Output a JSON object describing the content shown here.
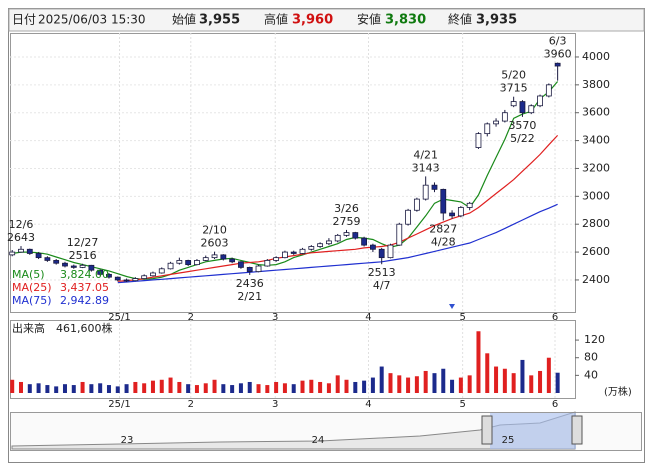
{
  "header": {
    "date_label": "日付",
    "date": "2025/06/03 15:30",
    "open_label": "始値",
    "open": "3,955",
    "high_label": "高値",
    "high": "3,960",
    "low_label": "安値",
    "low": "3,830",
    "close_label": "終値",
    "close": "3,935"
  },
  "chart_data": {
    "type": "candlestick",
    "up_color": "#ffffff",
    "down_color": "#1c2a8c",
    "edge_color": "#1a1a40",
    "ylim": [
      2170,
      4172
    ],
    "yticks": [
      2400,
      2600,
      2800,
      3000,
      3200,
      3400,
      3600,
      3800,
      4000
    ],
    "xlim": [
      -0.25,
      62.95
    ],
    "xticks": [
      {
        "value": 12.2,
        "label": "25/1"
      },
      {
        "value": 20.3,
        "label": "2"
      },
      {
        "value": 29.9,
        "label": "3"
      },
      {
        "value": 40.5,
        "label": "4"
      },
      {
        "value": 51.2,
        "label": "5"
      },
      {
        "value": 61.7,
        "label": "6"
      }
    ],
    "grid": true,
    "candles": [
      [
        2580,
        2615,
        2570,
        2600
      ],
      [
        2600,
        2643,
        2595,
        2620
      ],
      [
        2620,
        2625,
        2580,
        2590
      ],
      [
        2590,
        2600,
        2550,
        2560
      ],
      [
        2560,
        2570,
        2530,
        2540
      ],
      [
        2540,
        2550,
        2510,
        2520
      ],
      [
        2520,
        2530,
        2490,
        2500
      ],
      [
        2500,
        2510,
        2480,
        2490
      ],
      [
        2490,
        2516,
        2485,
        2505
      ],
      [
        2505,
        2508,
        2460,
        2470
      ],
      [
        2470,
        2475,
        2430,
        2440
      ],
      [
        2440,
        2450,
        2410,
        2420
      ],
      [
        2420,
        2425,
        2390,
        2400
      ],
      [
        2400,
        2410,
        2385,
        2395
      ],
      [
        2395,
        2420,
        2390,
        2410
      ],
      [
        2410,
        2440,
        2405,
        2430
      ],
      [
        2430,
        2460,
        2425,
        2450
      ],
      [
        2450,
        2490,
        2445,
        2480
      ],
      [
        2480,
        2530,
        2475,
        2520
      ],
      [
        2520,
        2560,
        2510,
        2540
      ],
      [
        2540,
        2545,
        2500,
        2510
      ],
      [
        2510,
        2550,
        2505,
        2540
      ],
      [
        2540,
        2575,
        2535,
        2560
      ],
      [
        2560,
        2603,
        2550,
        2580
      ],
      [
        2580,
        2585,
        2540,
        2550
      ],
      [
        2550,
        2560,
        2520,
        2530
      ],
      [
        2530,
        2535,
        2480,
        2490
      ],
      [
        2490,
        2495,
        2436,
        2460
      ],
      [
        2460,
        2510,
        2455,
        2500
      ],
      [
        2500,
        2550,
        2495,
        2540
      ],
      [
        2540,
        2570,
        2530,
        2560
      ],
      [
        2560,
        2610,
        2555,
        2600
      ],
      [
        2600,
        2610,
        2580,
        2590
      ],
      [
        2590,
        2630,
        2585,
        2620
      ],
      [
        2620,
        2650,
        2610,
        2640
      ],
      [
        2640,
        2670,
        2630,
        2660
      ],
      [
        2660,
        2700,
        2650,
        2680
      ],
      [
        2680,
        2730,
        2670,
        2720
      ],
      [
        2720,
        2759,
        2710,
        2740
      ],
      [
        2740,
        2745,
        2690,
        2700
      ],
      [
        2700,
        2710,
        2640,
        2650
      ],
      [
        2650,
        2660,
        2600,
        2620
      ],
      [
        2620,
        2630,
        2513,
        2560
      ],
      [
        2560,
        2660,
        2555,
        2650
      ],
      [
        2650,
        2810,
        2645,
        2800
      ],
      [
        2800,
        2910,
        2790,
        2900
      ],
      [
        2900,
        2990,
        2890,
        2980
      ],
      [
        2980,
        3143,
        2970,
        3080
      ],
      [
        3080,
        3100,
        3030,
        3050
      ],
      [
        3050,
        3055,
        2827,
        2880
      ],
      [
        2880,
        2900,
        2840,
        2860
      ],
      [
        2860,
        2930,
        2850,
        2920
      ],
      [
        2920,
        2960,
        2900,
        2950
      ],
      [
        3350,
        3460,
        3340,
        3450
      ],
      [
        3450,
        3530,
        3430,
        3520
      ],
      [
        3520,
        3560,
        3500,
        3540
      ],
      [
        3540,
        3620,
        3530,
        3600
      ],
      [
        3650,
        3715,
        3640,
        3680
      ],
      [
        3680,
        3690,
        3570,
        3600
      ],
      [
        3600,
        3660,
        3590,
        3650
      ],
      [
        3650,
        3730,
        3640,
        3720
      ],
      [
        3720,
        3810,
        3710,
        3800
      ],
      [
        3955,
        3960,
        3830,
        3935
      ]
    ],
    "series": [
      {
        "name": "MA(5)",
        "color": "#1a8a1a",
        "last_label": "3,824.00",
        "values": [
          2590,
          2600,
          2600,
          2595,
          2585,
          2565,
          2545,
          2525,
          2510,
          2495,
          2480,
          2465,
          2445,
          2425,
          2410,
          2405,
          2410,
          2420,
          2440,
          2470,
          2490,
          2510,
          2530,
          2540,
          2550,
          2555,
          2540,
          2525,
          2510,
          2505,
          2510,
          2530,
          2560,
          2580,
          2600,
          2620,
          2640,
          2660,
          2690,
          2705,
          2700,
          2690,
          2660,
          2635,
          2650,
          2700,
          2780,
          2860,
          2950,
          2980,
          2970,
          2960,
          2920,
          3010,
          3150,
          3280,
          3410,
          3560,
          3590,
          3610,
          3700,
          3750,
          3824.0
        ]
      },
      {
        "name": "MA(25)",
        "color": "#e02020",
        "last_label": "3,437.05",
        "values": [
          null,
          null,
          null,
          null,
          null,
          null,
          null,
          null,
          null,
          null,
          null,
          null,
          2390,
          2395,
          2400,
          2410,
          2420,
          2430,
          2440,
          2450,
          2460,
          2470,
          2480,
          2490,
          2500,
          2510,
          2520,
          2525,
          2530,
          2540,
          2555,
          2565,
          2575,
          2585,
          2595,
          2600,
          2605,
          2610,
          2615,
          2620,
          2630,
          2635,
          2640,
          2650,
          2670,
          2700,
          2730,
          2760,
          2790,
          2815,
          2840,
          2860,
          2880,
          2920,
          2970,
          3020,
          3070,
          3120,
          3180,
          3240,
          3300,
          3370,
          3437.05
        ]
      },
      {
        "name": "MA(75)",
        "color": "#2030d0",
        "last_label": "2,942.89",
        "values": [
          null,
          null,
          null,
          null,
          null,
          null,
          null,
          null,
          null,
          null,
          null,
          null,
          2380,
          2385,
          2390,
          2395,
          2400,
          2405,
          2410,
          2415,
          2420,
          2425,
          2430,
          2435,
          2440,
          2445,
          2450,
          2455,
          2460,
          2465,
          2470,
          2475,
          2480,
          2485,
          2490,
          2495,
          2500,
          2505,
          2510,
          2515,
          2520,
          2525,
          2530,
          2540,
          2550,
          2560,
          2575,
          2590,
          2605,
          2620,
          2635,
          2650,
          2665,
          2690,
          2715,
          2740,
          2770,
          2800,
          2830,
          2860,
          2890,
          2915,
          2942.89
        ]
      }
    ],
    "annotations": [
      {
        "label": "12/6",
        "value": 2643,
        "index": 1,
        "position": "above"
      },
      {
        "label": "12/27",
        "value": 2516,
        "index": 8,
        "position": "above"
      },
      {
        "label": "2/10",
        "value": 2603,
        "index": 23,
        "position": "above"
      },
      {
        "label": "2/21",
        "value": 2436,
        "index": 27,
        "position": "below"
      },
      {
        "label": "3/26",
        "value": 2759,
        "index": 38,
        "position": "above"
      },
      {
        "label": "4/7",
        "value": 2513,
        "index": 42,
        "position": "below"
      },
      {
        "label": "4/21",
        "value": 3143,
        "index": 47,
        "position": "above"
      },
      {
        "label": "4/28",
        "value": 2827,
        "index": 49,
        "position": "below"
      },
      {
        "label": "5/20",
        "value": 3715,
        "index": 57,
        "position": "above"
      },
      {
        "label": "5/22",
        "value": 3570,
        "index": 58,
        "position": "below"
      },
      {
        "label": "6/3",
        "value": 3960,
        "index": 62,
        "position": "above"
      }
    ],
    "volume": {
      "title": "出来高",
      "last": "461,600株",
      "unit": "(万株)",
      "up_color": "#e02020",
      "down_color": "#1c2a8c",
      "ylim": [
        0,
        161
      ],
      "yticks": [
        40,
        80,
        120
      ],
      "values": [
        30,
        25,
        20,
        22,
        18,
        15,
        20,
        18,
        25,
        20,
        22,
        18,
        15,
        20,
        25,
        22,
        28,
        30,
        35,
        25,
        20,
        18,
        22,
        30,
        20,
        18,
        22,
        25,
        20,
        18,
        25,
        22,
        20,
        28,
        30,
        25,
        22,
        40,
        30,
        25,
        28,
        35,
        60,
        45,
        40,
        35,
        38,
        50,
        45,
        55,
        30,
        35,
        40,
        140,
        90,
        60,
        55,
        45,
        75,
        40,
        50,
        80,
        46
      ]
    },
    "navigator": {
      "labels": [
        "23",
        "24",
        "25"
      ]
    }
  }
}
